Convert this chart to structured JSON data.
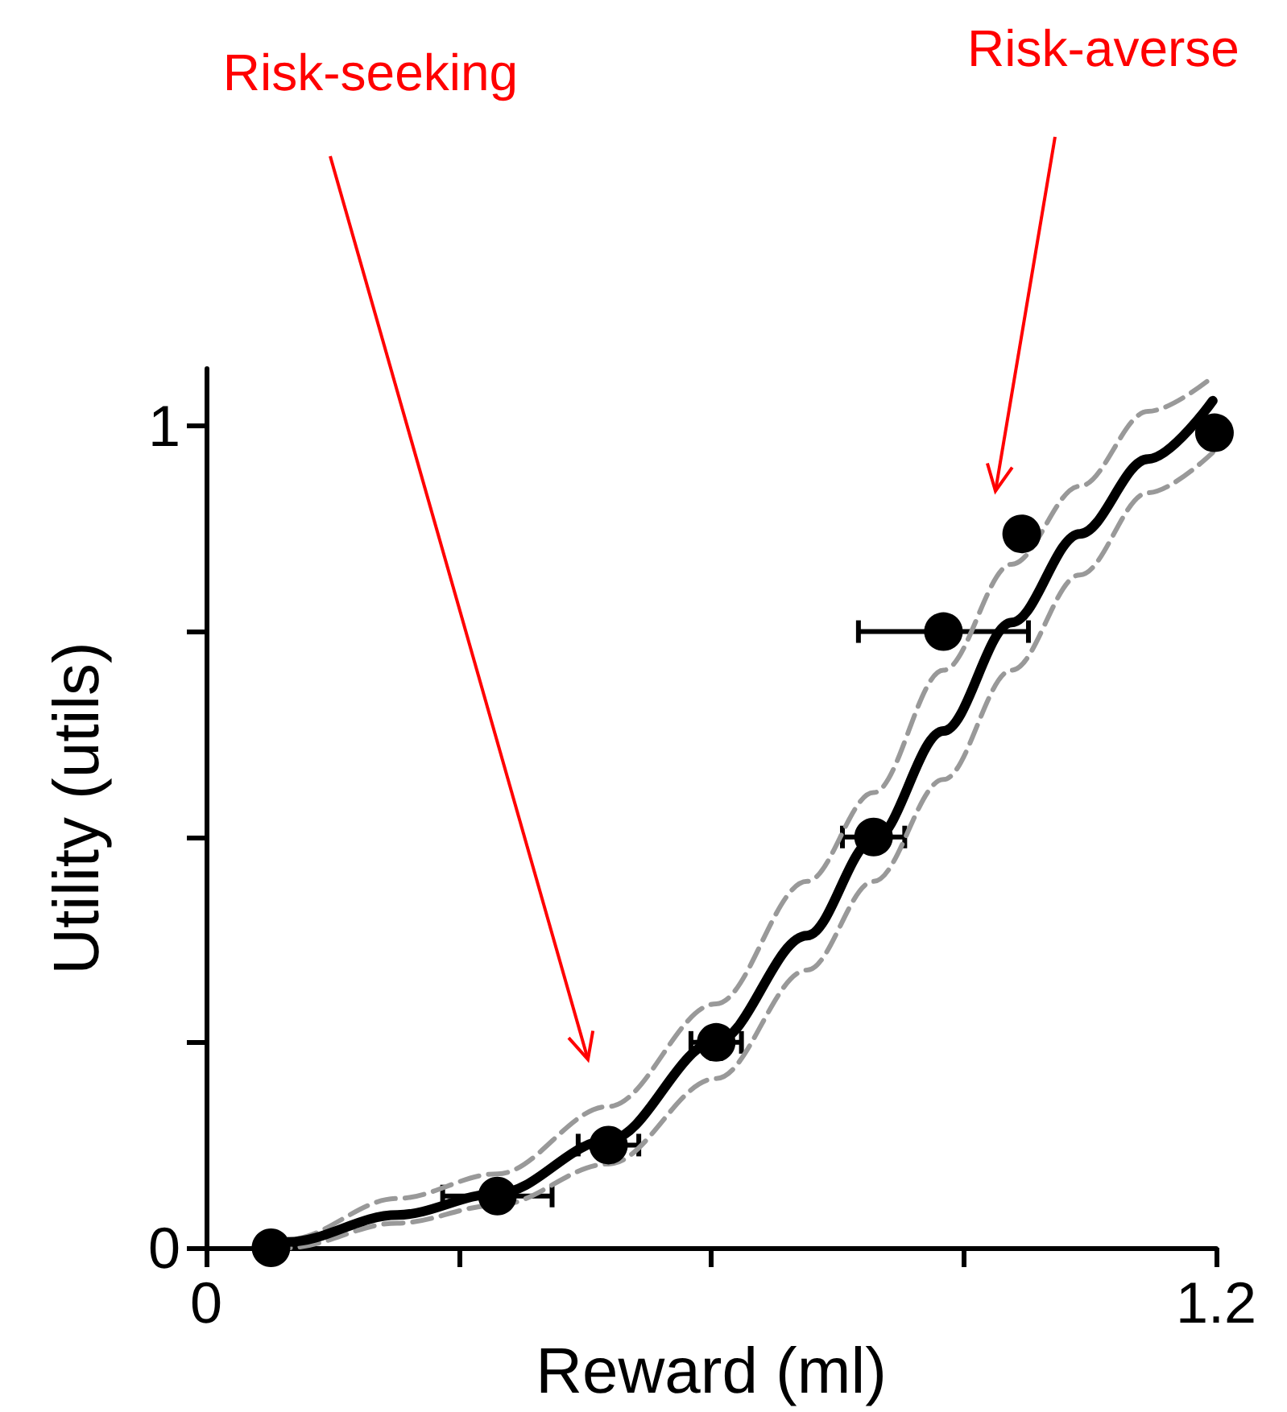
{
  "chart_data": {
    "type": "scatter",
    "xlabel": "Reward (ml)",
    "ylabel": "Utility (utils)",
    "xlim": [
      0,
      1.2
    ],
    "xticks": [
      0,
      {
        "value": 0.3,
        "label": null
      },
      {
        "value": 0.6,
        "label": null
      },
      {
        "value": 0.9,
        "label": null
      },
      1.2
    ],
    "ylim": [
      0,
      1.07
    ],
    "yticks": [
      0,
      {
        "value": 0.25,
        "label": null
      },
      {
        "value": 0.5,
        "label": null
      },
      {
        "value": 0.75,
        "label": null
      },
      1
    ],
    "annotations": [
      "Risk-seeking",
      "Risk-averse"
    ],
    "series": [
      {
        "color": "#000000",
        "marker": "circle",
        "x": [
          0.077,
          0.346,
          0.478,
          0.606,
          0.793,
          0.876,
          0.969,
          1.198
        ],
        "values": [
          0,
          0.063,
          0.125,
          0.25,
          0.5,
          0.75,
          0.869,
          0.992
        ],
        "xerrors": [
          null,
          0.065,
          0.036,
          0.03,
          0.037,
          0.101,
          null,
          null
        ]
      },
      {
        "type": "line",
        "color": "#000000",
        "marker": "none",
        "line_style": "solid",
        "x": [
          0.077,
          0.097,
          0.227,
          0.346,
          0.478,
          0.606,
          0.714,
          0.793,
          0.876,
          0.957,
          1.038,
          1.119,
          1.196
        ],
        "values": [
          0,
          0.007,
          0.04,
          0.066,
          0.131,
          0.251,
          0.38,
          0.496,
          0.629,
          0.761,
          0.869,
          0.96,
          1.031
        ]
      },
      {
        "type": "line",
        "color": "#999999",
        "marker": "none",
        "line_style": "dashed",
        "x": [
          0.077,
          0.097,
          0.227,
          0.346,
          0.478,
          0.606,
          0.714,
          0.793,
          0.876,
          0.957,
          1.038,
          1.119,
          1.196
        ],
        "values": [
          0,
          0.01,
          0.06,
          0.09,
          0.172,
          0.297,
          0.446,
          0.554,
          0.703,
          0.832,
          0.927,
          1.018,
          1.06
        ]
      },
      {
        "type": "line",
        "color": "#999999",
        "marker": "none",
        "line_style": "dashed",
        "x": [
          0.077,
          0.097,
          0.227,
          0.346,
          0.478,
          0.606,
          0.714,
          0.793,
          0.876,
          0.957,
          1.038,
          1.119,
          1.196
        ],
        "values": [
          0,
          0,
          0.03,
          0.052,
          0.102,
          0.206,
          0.338,
          0.446,
          0.57,
          0.703,
          0.819,
          0.919,
          0.968
        ]
      }
    ]
  }
}
